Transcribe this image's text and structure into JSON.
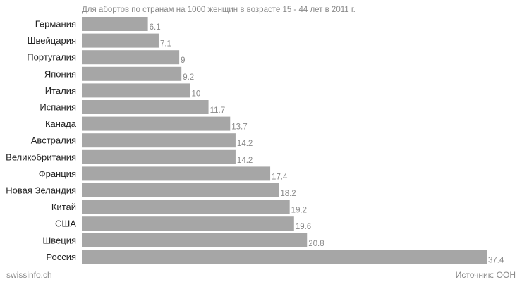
{
  "chart_data": {
    "type": "bar",
    "orientation": "horizontal",
    "title": "",
    "subtitle": "Для абортов по странам на 1000 женщин в возрасте 15 - 44 лет в 2011 г.",
    "categories": [
      "Германия",
      "Швейцария",
      "Португалия",
      "Япония",
      "Италия",
      "Испания",
      "Канада",
      "Австралия",
      "Великобритания",
      "Франция",
      "Новая Зеландия",
      "Китай",
      "США",
      "Швеция",
      "Россия"
    ],
    "values": [
      6.1,
      7.1,
      9,
      9.2,
      10,
      11.7,
      13.7,
      14.2,
      14.2,
      17.4,
      18.2,
      19.2,
      19.6,
      20.8,
      37.4
    ],
    "value_labels": [
      "6.1",
      "7.1",
      "9",
      "9.2",
      "10",
      "11.7",
      "13.7",
      "14.2",
      "14.2",
      "17.4",
      "18.2",
      "19.2",
      "19.6",
      "20.8",
      "37.4"
    ],
    "xlabel": "",
    "ylabel": "",
    "xlim": [
      0,
      37.4
    ],
    "grid": false,
    "legend": "none",
    "colors": {
      "bar": "#a6a6a6",
      "category_text": "#222222",
      "value_text": "#8a8a8a",
      "subtitle_text": "#8a8a8a"
    }
  },
  "footer": {
    "brand": "swissinfo.ch",
    "source": "Источник: ООН"
  }
}
